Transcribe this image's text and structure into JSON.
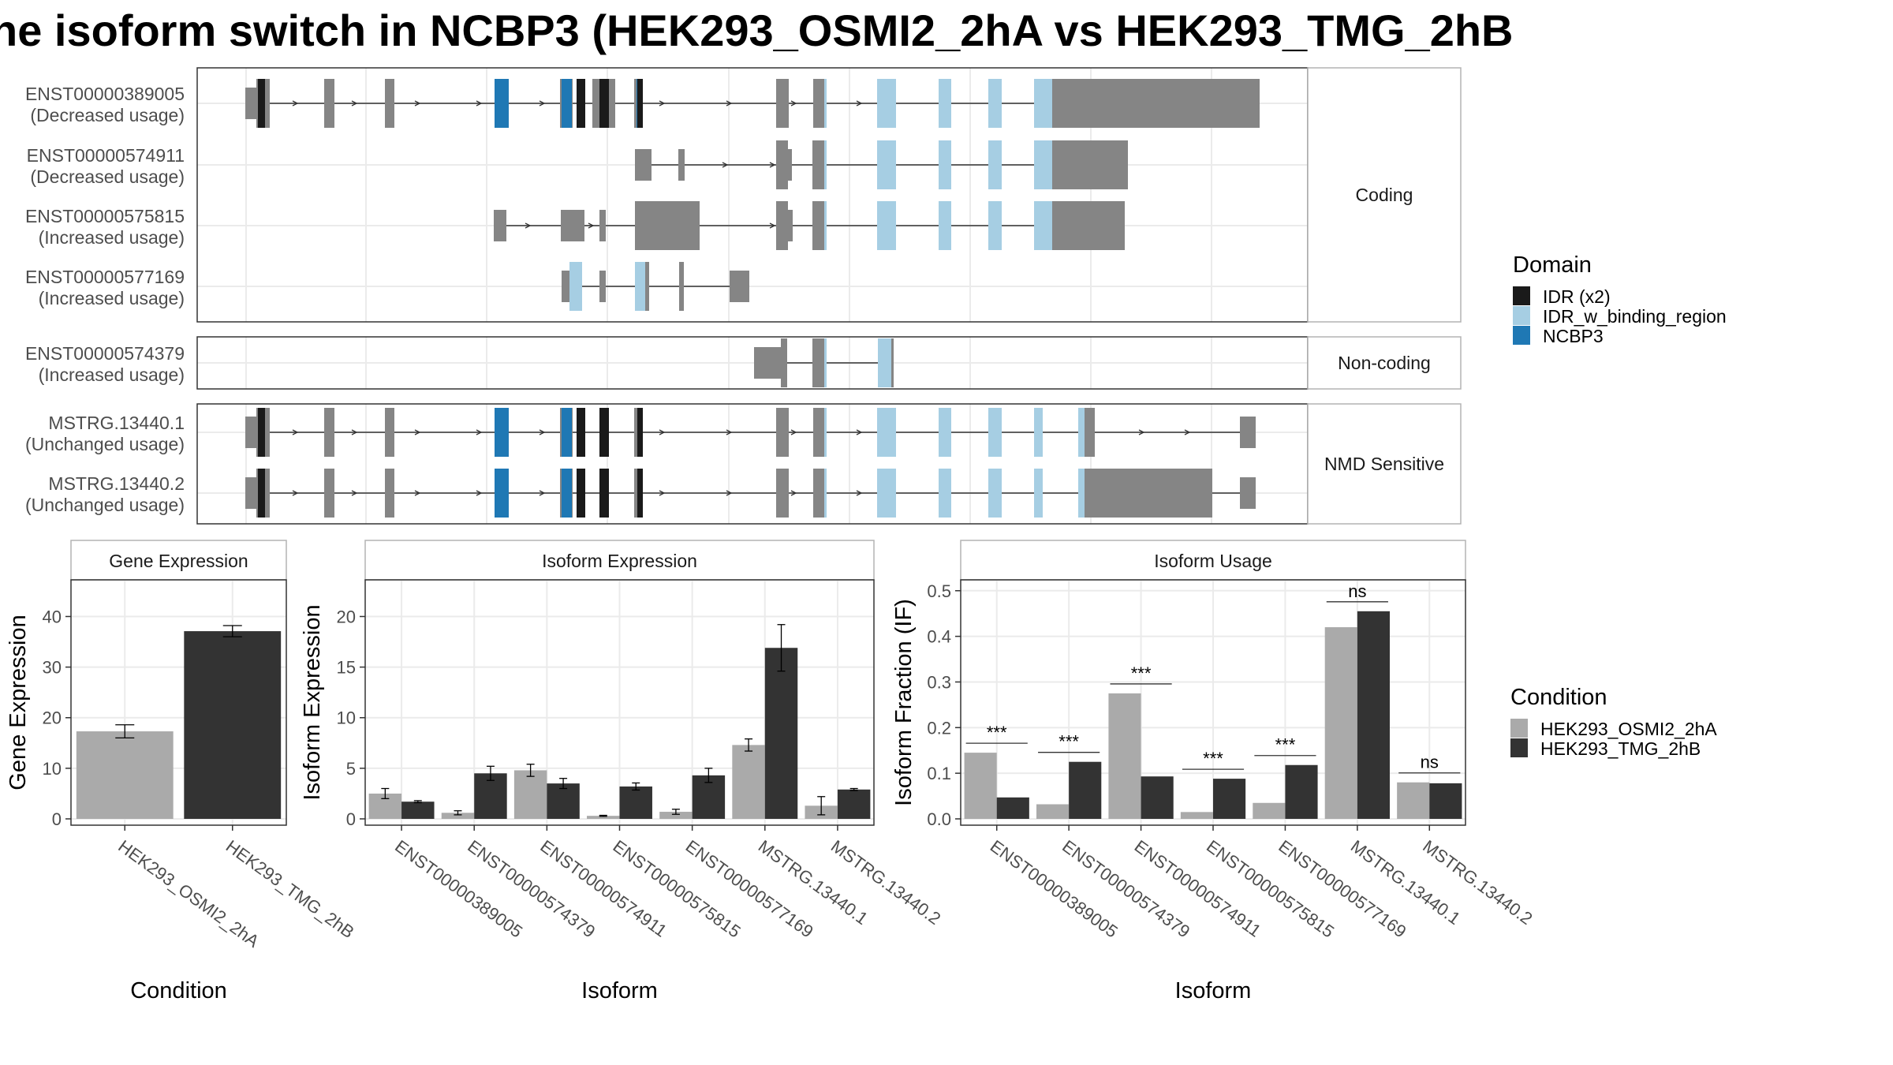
{
  "title": "he isoform switch in NCBP3 (HEK293_OSMI2_2hA vs HEK293_TMG_2hB",
  "structure": {
    "panels": [
      {
        "label": "Coding",
        "isoforms": [
          {
            "name": "ENST00000389005",
            "usage": "(Decreased usage)"
          },
          {
            "name": "ENST00000574911",
            "usage": "(Decreased usage)"
          },
          {
            "name": "ENST00000575815",
            "usage": "(Increased usage)"
          },
          {
            "name": "ENST00000577169",
            "usage": "(Increased usage)"
          }
        ]
      },
      {
        "label": "Non-coding",
        "isoforms": [
          {
            "name": "ENST00000574379",
            "usage": "(Increased usage)"
          }
        ]
      },
      {
        "label": "NMD Sensitive",
        "isoforms": [
          {
            "name": "MSTRG.13440.1",
            "usage": "(Unchanged usage)"
          },
          {
            "name": "MSTRG.13440.2",
            "usage": "(Unchanged usage)"
          }
        ]
      }
    ]
  },
  "domain_legend": {
    "title": "Domain",
    "items": [
      {
        "label": "IDR (x2)",
        "color": "#1a1a1a"
      },
      {
        "label": "IDR_w_binding_region",
        "color": "#a6cee3"
      },
      {
        "label": "NCBP3",
        "color": "#1f78b4"
      }
    ]
  },
  "condition_legend": {
    "title": "Condition",
    "items": [
      {
        "label": "HEK293_OSMI2_2hA",
        "color": "#aaaaaa"
      },
      {
        "label": "HEK293_TMG_2hB",
        "color": "#333333"
      }
    ]
  },
  "colors": {
    "exon": "#858585",
    "cond1": "#aaaaaa",
    "cond2": "#333333",
    "grid": "#ebebeb",
    "strip_border": "#b3b3b3"
  },
  "chart_data": [
    {
      "type": "bar",
      "facet": "Gene Expression",
      "xlabel": "Condition",
      "ylabel": "Gene Expression",
      "ylim": [
        0,
        46
      ],
      "yticks": [
        0,
        10,
        20,
        30,
        40
      ],
      "categories": [
        "HEK293_OSMI2_2hA",
        "HEK293_TMG_2hB"
      ],
      "values": [
        17.3,
        37.1
      ],
      "errors": [
        1.3,
        1.1
      ]
    },
    {
      "type": "bar",
      "facet": "Isoform Expression",
      "xlabel": "Isoform",
      "ylabel": "Isoform Expression",
      "ylim": [
        0,
        23
      ],
      "yticks": [
        0,
        5,
        10,
        15,
        20
      ],
      "categories": [
        "ENST00000389005",
        "ENST00000574379",
        "ENST00000574911",
        "ENST00000575815",
        "ENST00000577169",
        "MSTRG.13440.1",
        "MSTRG.13440.2"
      ],
      "series": [
        {
          "name": "HEK293_OSMI2_2hA",
          "values": [
            2.5,
            0.6,
            4.8,
            0.3,
            0.7,
            7.3,
            1.3
          ],
          "errors": [
            0.5,
            0.2,
            0.6,
            0.05,
            0.25,
            0.6,
            0.9
          ]
        },
        {
          "name": "HEK293_TMG_2hB",
          "values": [
            1.7,
            4.5,
            3.5,
            3.2,
            4.3,
            16.9,
            2.9
          ],
          "errors": [
            0.1,
            0.7,
            0.5,
            0.35,
            0.7,
            2.3,
            0.1
          ]
        }
      ]
    },
    {
      "type": "bar",
      "facet": "Isoform Usage",
      "xlabel": "Isoform",
      "ylabel": "Isoform Fraction (IF)",
      "ylim": [
        0,
        0.51
      ],
      "yticks": [
        "0.0",
        "0.1",
        "0.2",
        "0.3",
        "0.4",
        "0.5"
      ],
      "categories": [
        "ENST00000389005",
        "ENST00000574379",
        "ENST00000574911",
        "ENST00000575815",
        "ENST00000577169",
        "MSTRG.13440.1",
        "MSTRG.13440.2"
      ],
      "series": [
        {
          "name": "HEK293_OSMI2_2hA",
          "values": [
            0.145,
            0.032,
            0.275,
            0.015,
            0.035,
            0.42,
            0.08
          ]
        },
        {
          "name": "HEK293_TMG_2hB",
          "values": [
            0.047,
            0.125,
            0.093,
            0.088,
            0.118,
            0.455,
            0.078
          ]
        }
      ],
      "significance": [
        "***",
        "***",
        "***",
        "***",
        "***",
        "ns",
        "ns"
      ]
    }
  ]
}
